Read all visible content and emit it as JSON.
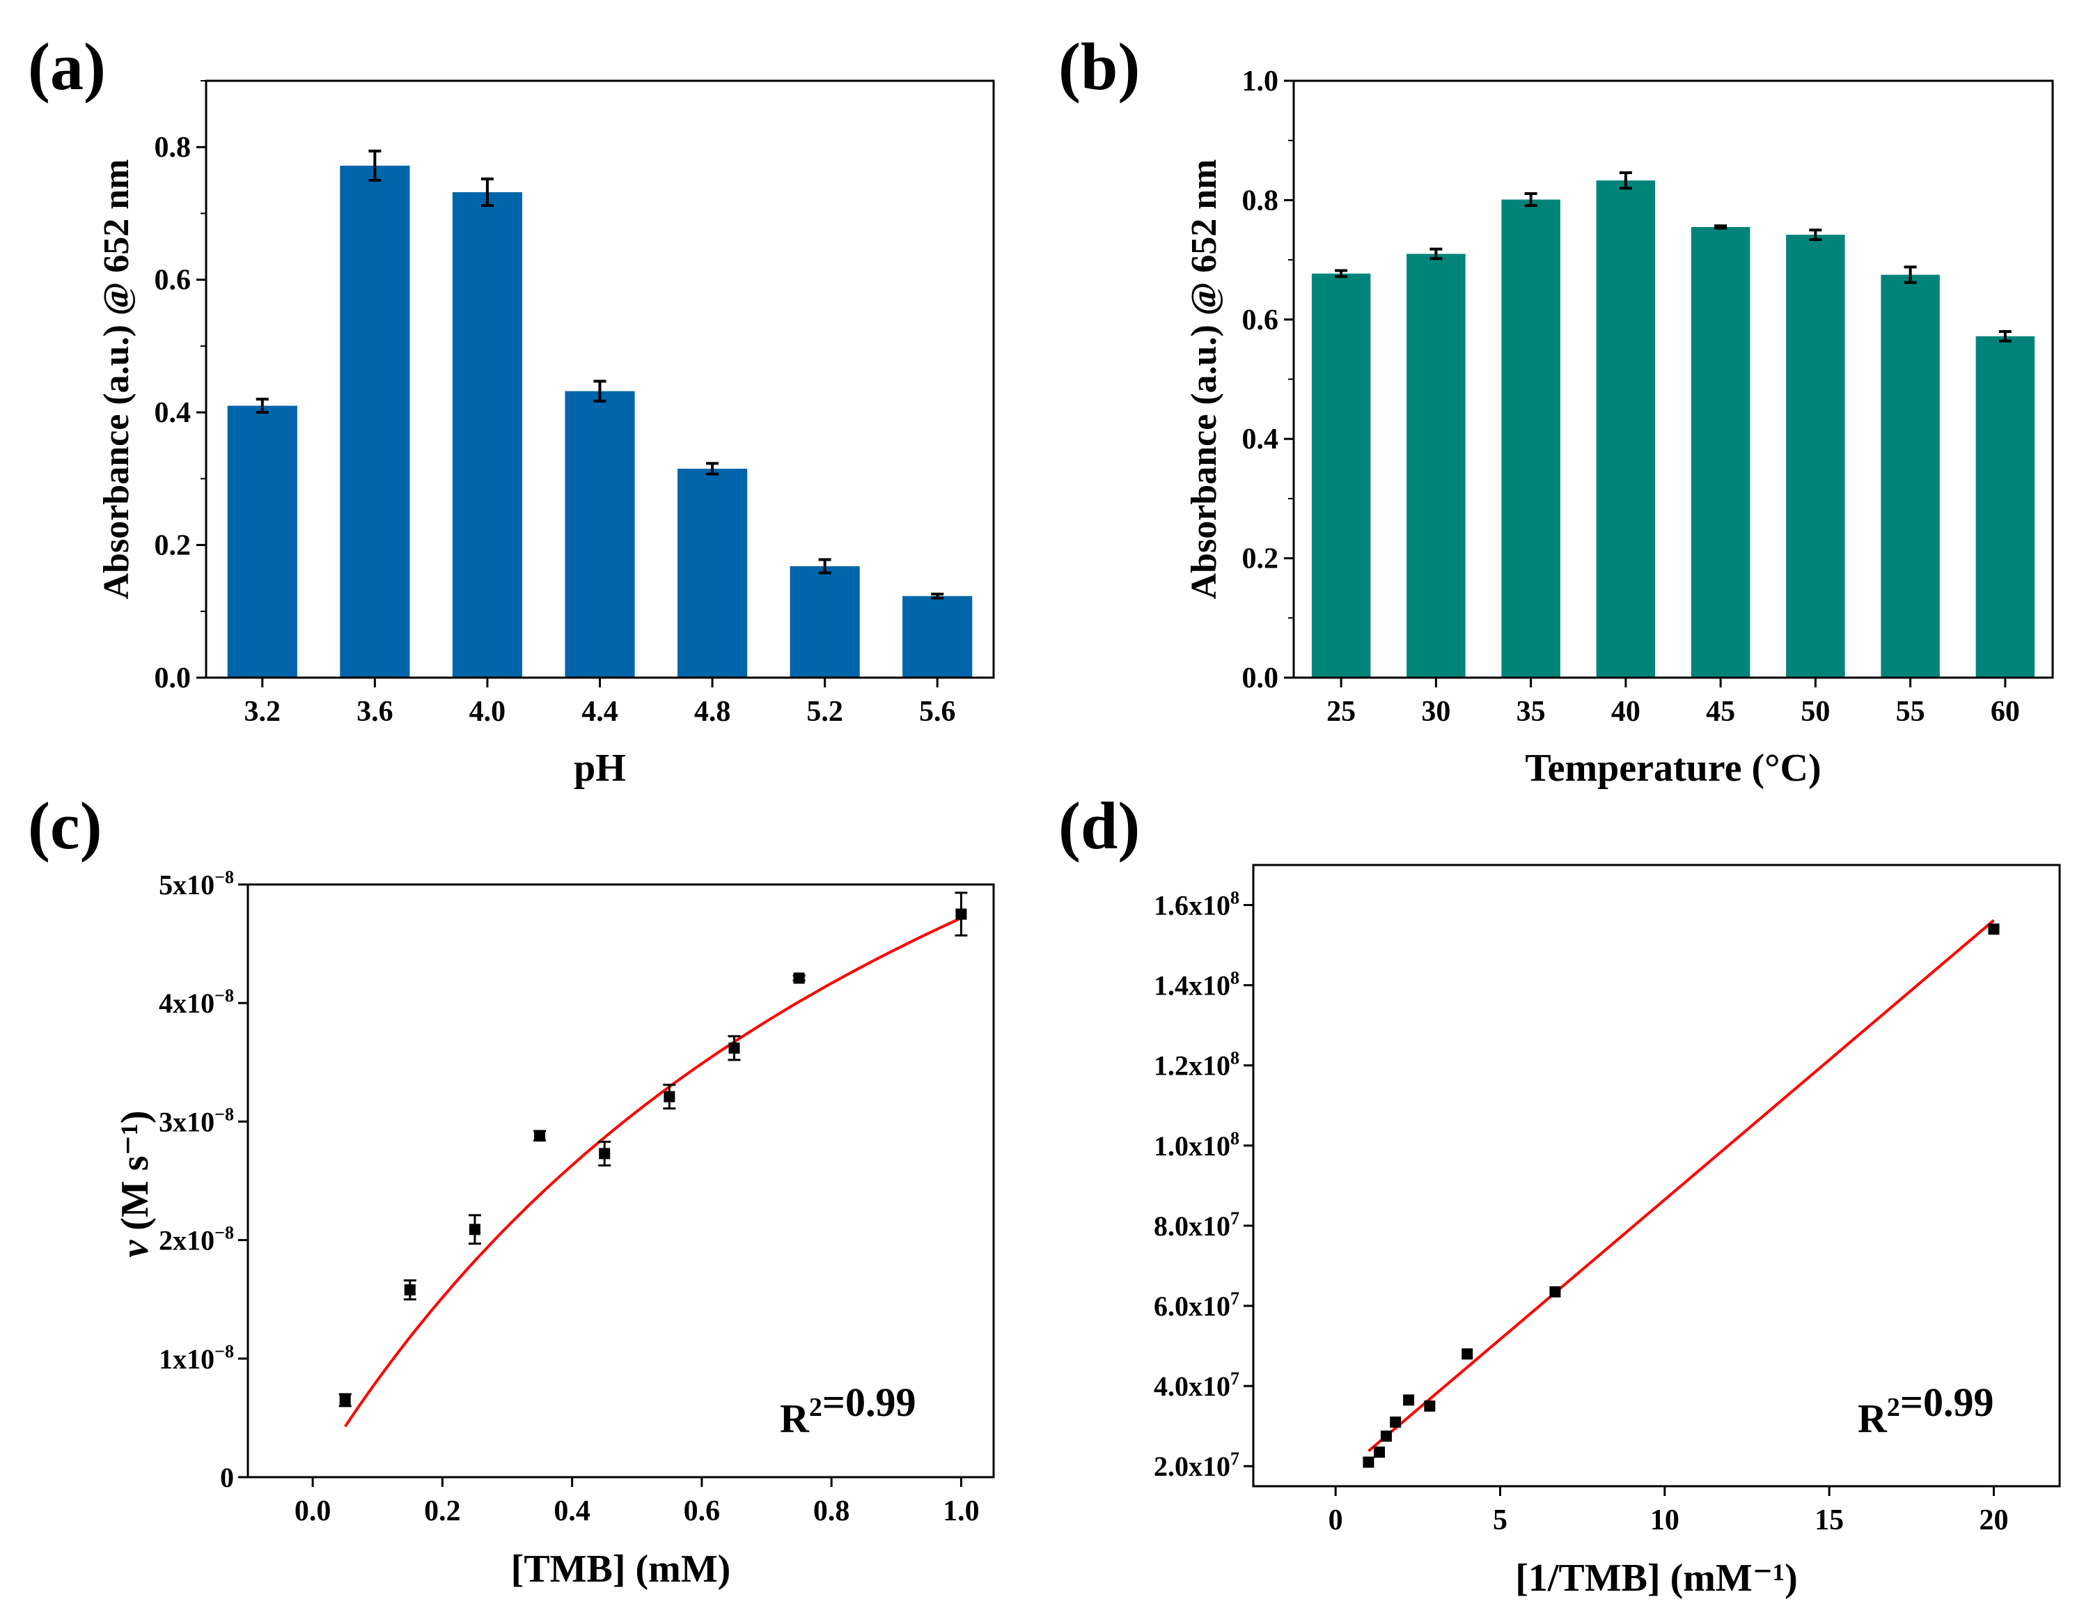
{
  "chart_data": [
    {
      "panel": "(a)",
      "type": "bar",
      "xlabel": "pH",
      "ylabel": "Absorbance (a.u.) @ 652 nm",
      "ylim": [
        0,
        0.9
      ],
      "yticks": [
        "0.0",
        "0.2",
        "0.4",
        "0.6",
        "0.8"
      ],
      "categories": [
        "3.2",
        "3.6",
        "4.0",
        "4.4",
        "4.8",
        "5.2",
        "5.6"
      ],
      "values": [
        0.41,
        0.772,
        0.732,
        0.432,
        0.315,
        0.168,
        0.123
      ],
      "errors": [
        0.01,
        0.022,
        0.02,
        0.015,
        0.008,
        0.01,
        0.003
      ],
      "color": "#0065AB"
    },
    {
      "panel": "(b)",
      "type": "bar",
      "xlabel": "Temperature (°C)",
      "ylabel": "Absorbance (a.u.) @ 652 nm",
      "ylim": [
        0,
        1.0
      ],
      "yticks": [
        "0.0",
        "0.2",
        "0.4",
        "0.6",
        "0.8",
        "1.0"
      ],
      "categories": [
        "25",
        "30",
        "35",
        "40",
        "45",
        "50",
        "55",
        "60"
      ],
      "values": [
        0.677,
        0.71,
        0.801,
        0.833,
        0.755,
        0.742,
        0.675,
        0.572
      ],
      "errors": [
        0.005,
        0.008,
        0.01,
        0.013,
        0.002,
        0.008,
        0.013,
        0.008
      ],
      "color": "#00847A"
    },
    {
      "panel": "(c)",
      "type": "scatter",
      "xlabel": "[TMB] (mM)",
      "ylabel": "v (M s⁻¹)",
      "xlim": [
        -0.1,
        1.05
      ],
      "ylim": [
        0,
        5e-08
      ],
      "xticks": [
        "0.0",
        "0.2",
        "0.4",
        "0.6",
        "0.8",
        "1.0"
      ],
      "yticks": [
        "0",
        "1x10⁻⁸",
        "2x10⁻⁸",
        "3x10⁻⁸",
        "4x10⁻⁸",
        "5x10⁻⁸"
      ],
      "x": [
        0.05,
        0.15,
        0.25,
        0.35,
        0.45,
        0.55,
        0.65,
        0.75,
        1.0
      ],
      "y": [
        6.5e-09,
        1.58e-08,
        2.09e-08,
        2.88e-08,
        2.73e-08,
        3.21e-08,
        3.62e-08,
        4.21e-08,
        4.75e-08
      ],
      "errors": [
        5e-10,
        8e-10,
        1.2e-09,
        4e-10,
        1e-09,
        1e-09,
        1e-09,
        2e-10,
        1.8e-09
      ],
      "fit": {
        "type": "michaelis-menten",
        "vmax": 1e-07,
        "km": 1.12,
        "color": "#FF0000"
      },
      "annotation": "R²=0.99"
    },
    {
      "panel": "(d)",
      "type": "scatter",
      "xlabel": "[1/TMB] (mM⁻¹)",
      "ylabel": "",
      "xlim": [
        -2.5,
        22
      ],
      "ylim": [
        15000000.0,
        170000000.0
      ],
      "xticks": [
        "0",
        "5",
        "10",
        "15",
        "20"
      ],
      "yticks": [
        "2.0x10⁷",
        "4.0x10⁷",
        "6.0x10⁷",
        "8.0x10⁷",
        "1.0x10⁸",
        "1.2x10⁸",
        "1.4x10⁸",
        "1.6x10⁸"
      ],
      "x": [
        1.0,
        1.33,
        1.54,
        1.82,
        2.22,
        2.86,
        4.0,
        6.67,
        20.0
      ],
      "y": [
        21000000.0,
        23500000.0,
        27500000.0,
        31000000.0,
        36500000.0,
        35000000.0,
        48000000.0,
        63500000.0,
        154000000.0
      ],
      "fit": {
        "type": "linear",
        "slope": 6970000.0,
        "intercept": 16800000.0,
        "x_from": 1.0,
        "x_to": 20.0,
        "color": "#FF0000"
      },
      "annotation": "R²=0.99"
    }
  ]
}
